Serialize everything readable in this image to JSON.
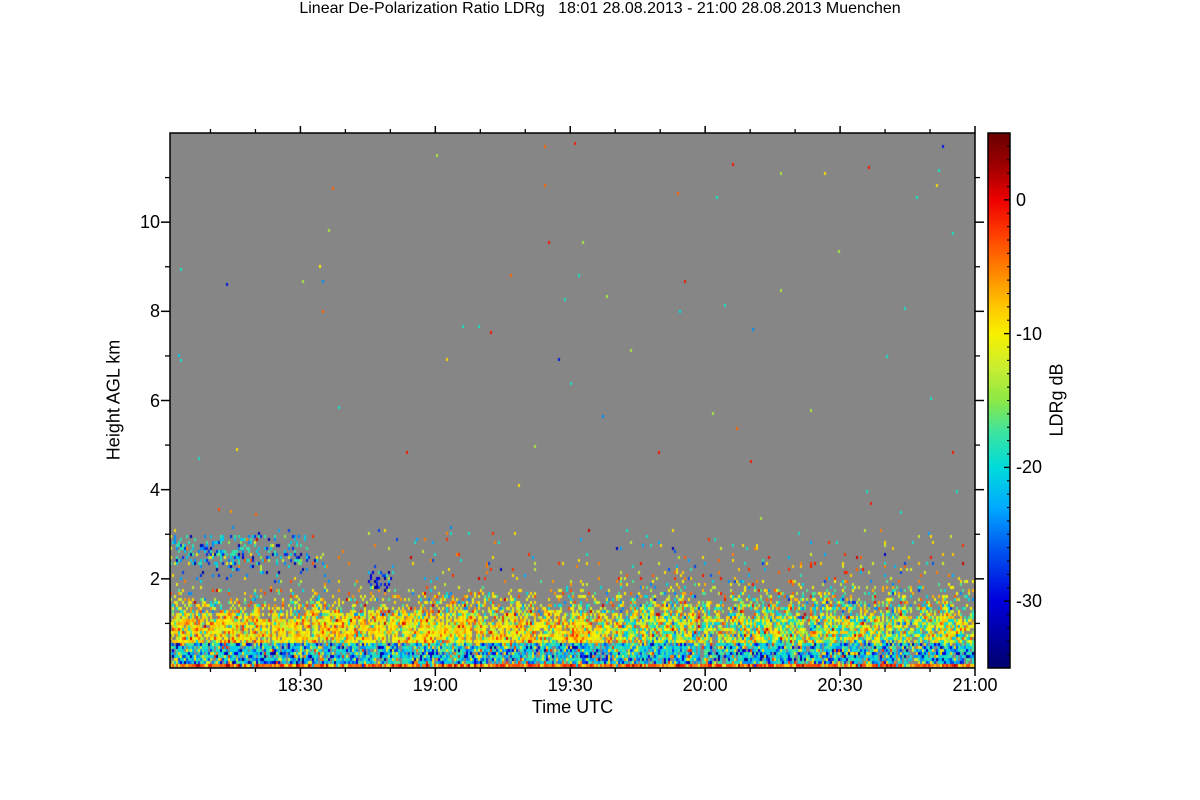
{
  "page": {
    "background": "#ffffff"
  },
  "chart_data": {
    "type": "heatmap",
    "title": "Linear De-Polarization Ratio LDRg   18:01 28.08.2013 - 21:00 28.08.2013 Muenchen",
    "xlabel": "Time UTC",
    "ylabel": "Height AGL km",
    "colorbar_label": "LDRg dB",
    "station": "Muenchen",
    "time_start": "18:01 28.08.2013",
    "time_end": "21:00 28.08.2013",
    "plot_background": "#868686",
    "frame_color": "#000000",
    "x_axis": {
      "start_minutes": 1081,
      "end_minutes": 1260,
      "major_ticks": [
        {
          "minutes": 1110,
          "label": "18:30"
        },
        {
          "minutes": 1140,
          "label": "19:00"
        },
        {
          "minutes": 1170,
          "label": "19:30"
        },
        {
          "minutes": 1200,
          "label": "20:00"
        },
        {
          "minutes": 1230,
          "label": "20:30"
        },
        {
          "minutes": 1260,
          "label": "21:00"
        }
      ],
      "minor_step_minutes": 10
    },
    "y_axis": {
      "min_km": 0,
      "max_km": 12,
      "major_ticks": [
        {
          "km": 2,
          "label": "2"
        },
        {
          "km": 4,
          "label": "4"
        },
        {
          "km": 6,
          "label": "6"
        },
        {
          "km": 8,
          "label": "8"
        },
        {
          "km": 10,
          "label": "10"
        }
      ],
      "minor_step_km": 1
    },
    "colorbar": {
      "max_db": 5,
      "min_db": -35,
      "major_ticks": [
        {
          "db": 0,
          "label": "0"
        },
        {
          "db": -10,
          "label": "-10"
        },
        {
          "db": -20,
          "label": "-20"
        },
        {
          "db": -30,
          "label": "-30"
        }
      ],
      "minor_step_db": 1
    },
    "palette": [
      [
        0.0,
        "#6b0000"
      ],
      [
        0.06,
        "#9e0000"
      ],
      [
        0.125,
        "#ee0000"
      ],
      [
        0.19,
        "#ff4000"
      ],
      [
        0.27,
        "#ff9100"
      ],
      [
        0.32,
        "#ffc400"
      ],
      [
        0.375,
        "#f8f000"
      ],
      [
        0.44,
        "#c8ee32"
      ],
      [
        0.5,
        "#8ce846"
      ],
      [
        0.56,
        "#3ce4a0"
      ],
      [
        0.625,
        "#00dcdc"
      ],
      [
        0.7,
        "#00aaff"
      ],
      [
        0.78,
        "#0055f0"
      ],
      [
        0.875,
        "#0000dc"
      ],
      [
        1.0,
        "#00006e"
      ]
    ],
    "cell_size_px": [
      2,
      3
    ],
    "seed": 20130828,
    "layers": [
      {
        "name": "ground-return-stripe",
        "t": [
          0,
          1
        ],
        "h": [
          0.0,
          0.1
        ],
        "d": [
          1.6,
          1.6
        ],
        "values": [
          [
            -1,
            2
          ],
          [
            -3,
            3
          ],
          [
            -5,
            3
          ],
          [
            -8,
            2
          ],
          [
            -11,
            1
          ],
          [
            -14,
            0.5
          ],
          [
            -22,
            0.4
          ],
          [
            -28,
            0.2
          ],
          [
            2,
            1
          ]
        ]
      },
      {
        "name": "near-surface-cyan-band",
        "t": [
          0,
          1
        ],
        "h": [
          0.1,
          0.55
        ],
        "d": [
          0.93,
          0.93
        ],
        "values": [
          [
            -17,
            2
          ],
          [
            -19,
            3
          ],
          [
            -21,
            3
          ],
          [
            -24,
            2
          ],
          [
            -27,
            1.2
          ],
          [
            -30,
            1
          ],
          [
            -33,
            0.6
          ],
          [
            -12,
            1
          ],
          [
            -9,
            0.8
          ],
          [
            -5,
            0.4
          ],
          [
            -2,
            0.3
          ]
        ]
      },
      {
        "name": "boundary-layer-yellow-left",
        "t": [
          0,
          0.55
        ],
        "h": [
          0.55,
          1.2
        ],
        "d": [
          0.97,
          0.97
        ],
        "jag": 0.15,
        "values": [
          [
            -8,
            4
          ],
          [
            -10,
            5
          ],
          [
            -12,
            3
          ],
          [
            -6,
            2
          ],
          [
            -14,
            1.5
          ],
          [
            -4,
            1
          ],
          [
            -2,
            0.8
          ],
          [
            -17,
            0.8
          ],
          [
            -20,
            0.6
          ],
          [
            1,
            0.2
          ]
        ]
      },
      {
        "name": "boundary-layer-mixed-right",
        "t": [
          0.55,
          1
        ],
        "h": [
          0.55,
          1.3
        ],
        "d": [
          0.95,
          0.95
        ],
        "jag": 0.2,
        "values": [
          [
            -10,
            3
          ],
          [
            -12,
            3
          ],
          [
            -15,
            2.5
          ],
          [
            -18,
            2.5
          ],
          [
            -20,
            2
          ],
          [
            -8,
            2
          ],
          [
            -6,
            1
          ],
          [
            -3,
            0.8
          ],
          [
            -22,
            1
          ],
          [
            -26,
            0.5
          ],
          [
            1,
            0.2
          ]
        ]
      },
      {
        "name": "falloff-left",
        "t": [
          0,
          0.55
        ],
        "h": [
          1.2,
          1.9
        ],
        "d": [
          0.55,
          0.04
        ],
        "jag": 0.2,
        "values": [
          [
            -9,
            3
          ],
          [
            -11,
            3
          ],
          [
            -13,
            2
          ],
          [
            -6,
            1.5
          ],
          [
            -3,
            1
          ],
          [
            -17,
            1.5
          ],
          [
            -20,
            1.2
          ],
          [
            -24,
            0.6
          ],
          [
            1,
            0.3
          ]
        ]
      },
      {
        "name": "falloff-right",
        "t": [
          0.55,
          1
        ],
        "h": [
          1.3,
          2.0
        ],
        "d": [
          0.5,
          0.05
        ],
        "values": [
          [
            -10,
            2
          ],
          [
            -13,
            2
          ],
          [
            -17,
            2
          ],
          [
            -20,
            2
          ],
          [
            -7,
            1.5
          ],
          [
            -4,
            1
          ],
          [
            -1,
            0.6
          ],
          [
            -24,
            0.8
          ],
          [
            -28,
            0.4
          ]
        ]
      },
      {
        "name": "sparse-mid-level",
        "t": [
          0,
          1
        ],
        "h": [
          1.9,
          3.1
        ],
        "d": [
          0.035,
          0.015
        ],
        "values": [
          [
            -9,
            2
          ],
          [
            -5,
            1.5
          ],
          [
            -2,
            1.2
          ],
          [
            -13,
            1.5
          ],
          [
            -19,
            1.5
          ],
          [
            -23,
            1
          ],
          [
            -27,
            0.8
          ],
          [
            -31,
            0.5
          ],
          [
            1,
            0.6
          ]
        ]
      },
      {
        "name": "cloud-patch-early-cyan",
        "t": [
          0.0,
          0.17
        ],
        "h": [
          2.3,
          3.0
        ],
        "d": [
          0.28,
          0.28
        ],
        "values": [
          [
            -18,
            3
          ],
          [
            -21,
            3
          ],
          [
            -24,
            2
          ],
          [
            -28,
            1.5
          ],
          [
            -32,
            1
          ],
          [
            -15,
            1
          ],
          [
            -11,
            0.5
          ]
        ]
      },
      {
        "name": "cloud-patch-early-lower",
        "t": [
          0.03,
          0.2
        ],
        "h": [
          1.9,
          2.6
        ],
        "d": [
          0.12,
          0.12
        ],
        "values": [
          [
            -20,
            2
          ],
          [
            -24,
            2
          ],
          [
            -28,
            1.5
          ],
          [
            -32,
            1.2
          ],
          [
            -9,
            0.8
          ],
          [
            -3,
            0.5
          ],
          [
            -13,
            0.6
          ]
        ]
      },
      {
        "name": "blue-streak-1845",
        "t": [
          0.245,
          0.275
        ],
        "h": [
          1.7,
          2.15
        ],
        "d": [
          0.35,
          0.35
        ],
        "values": [
          [
            -27,
            2
          ],
          [
            -30,
            2
          ],
          [
            -33,
            2
          ],
          [
            -22,
            1
          ],
          [
            -18,
            0.5
          ]
        ]
      },
      {
        "name": "late-evening-scatter",
        "t": [
          0.55,
          1
        ],
        "h": [
          2.0,
          2.7
        ],
        "d": [
          0.045,
          0.02
        ],
        "values": [
          [
            -8,
            2
          ],
          [
            -4,
            1.5
          ],
          [
            -1,
            1
          ],
          [
            -12,
            1.5
          ],
          [
            -18,
            1.5
          ],
          [
            -22,
            1
          ],
          [
            -26,
            0.5
          ]
        ]
      },
      {
        "name": "upper-sprinkle",
        "t": [
          0,
          1
        ],
        "h": [
          3.1,
          11.8
        ],
        "d": [
          0.0012,
          0.0012
        ],
        "values": [
          [
            -9,
            1.5
          ],
          [
            -4,
            1
          ],
          [
            -1,
            1
          ],
          [
            -14,
            1
          ],
          [
            -19,
            1.5
          ],
          [
            -24,
            0.8
          ],
          [
            -29,
            0.5
          ]
        ]
      }
    ],
    "point_features": [
      {
        "t": 0.01,
        "h_km": 7.0,
        "db": -21
      },
      {
        "t": 0.012,
        "h_km": 6.9,
        "db": -19
      },
      {
        "t": 0.185,
        "h_km": 9.0,
        "db": -10
      },
      {
        "t": 0.632,
        "h_km": 8.0,
        "db": -20
      },
      {
        "t": 0.63,
        "h_km": 10.65,
        "db": -4
      },
      {
        "t": 0.698,
        "h_km": 11.3,
        "db": -1
      },
      {
        "t": 0.06,
        "h_km": 3.55,
        "db": -3
      },
      {
        "t": 0.075,
        "h_km": 3.5,
        "db": -6
      },
      {
        "t": 0.105,
        "h_km": 3.45,
        "db": -4
      }
    ]
  }
}
